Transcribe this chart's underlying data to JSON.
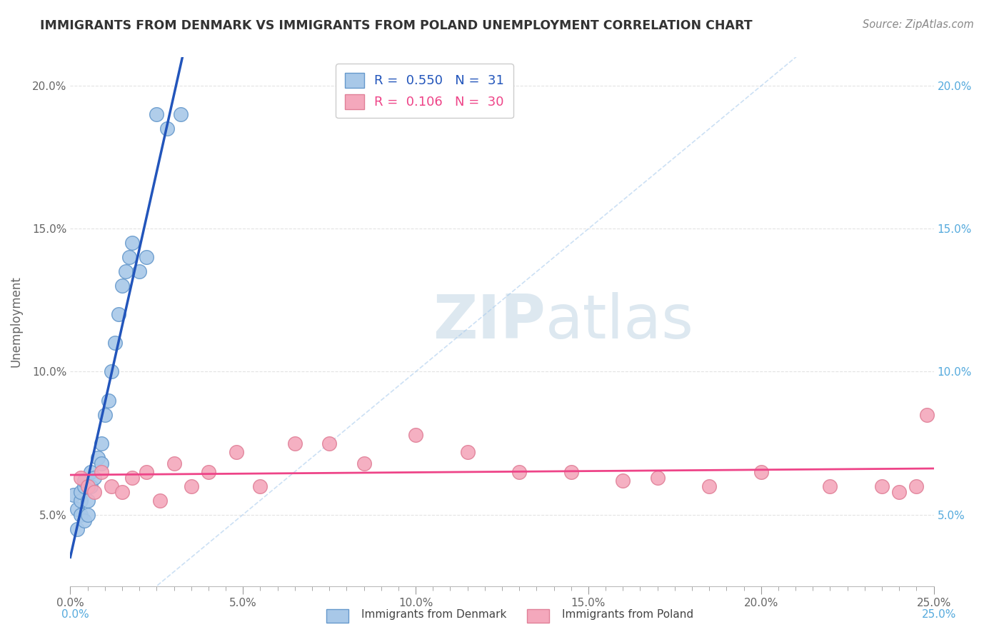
{
  "title": "IMMIGRANTS FROM DENMARK VS IMMIGRANTS FROM POLAND UNEMPLOYMENT CORRELATION CHART",
  "source": "Source: ZipAtlas.com",
  "ylabel": "Unemployment",
  "xlim": [
    0.0,
    0.25
  ],
  "ylim": [
    0.025,
    0.21
  ],
  "xtick_labels": [
    "0.0%",
    "",
    "",
    "",
    "",
    "",
    "",
    "",
    "",
    "",
    "5.0%",
    "",
    "",
    "",
    "",
    "",
    "",
    "",
    "",
    "",
    "10.0%",
    "",
    "",
    "",
    "",
    "",
    "",
    "",
    "",
    "",
    "15.0%",
    "",
    "",
    "",
    "",
    "",
    "",
    "",
    "",
    "",
    "20.0%",
    "",
    "",
    "",
    "",
    "",
    "",
    "",
    "",
    "",
    "25.0%"
  ],
  "xtick_vals": [
    0.0,
    0.005,
    0.01,
    0.015,
    0.02,
    0.025,
    0.03,
    0.035,
    0.04,
    0.045,
    0.05,
    0.055,
    0.06,
    0.065,
    0.07,
    0.075,
    0.08,
    0.085,
    0.09,
    0.095,
    0.1,
    0.105,
    0.11,
    0.115,
    0.12,
    0.125,
    0.13,
    0.135,
    0.14,
    0.145,
    0.15,
    0.155,
    0.16,
    0.165,
    0.17,
    0.175,
    0.18,
    0.185,
    0.19,
    0.195,
    0.2,
    0.205,
    0.21,
    0.215,
    0.22,
    0.225,
    0.23,
    0.235,
    0.24,
    0.245,
    0.25
  ],
  "xtick_major_labels": [
    "0.0%",
    "5.0%",
    "10.0%",
    "15.0%",
    "20.0%",
    "25.0%"
  ],
  "xtick_major_vals": [
    0.0,
    0.05,
    0.1,
    0.15,
    0.2,
    0.25
  ],
  "ytick_labels": [
    "5.0%",
    "10.0%",
    "15.0%",
    "20.0%"
  ],
  "ytick_vals": [
    0.05,
    0.1,
    0.15,
    0.2
  ],
  "denmark_color": "#A8C8E8",
  "poland_color": "#F4A8BC",
  "denmark_edge": "#6699CC",
  "poland_edge": "#E08098",
  "denmark_line_color": "#2255BB",
  "poland_line_color": "#EE4488",
  "r_denmark": 0.55,
  "n_denmark": 31,
  "r_poland": 0.106,
  "n_poland": 30,
  "denmark_x": [
    0.001,
    0.002,
    0.002,
    0.003,
    0.003,
    0.003,
    0.004,
    0.004,
    0.004,
    0.005,
    0.005,
    0.006,
    0.006,
    0.007,
    0.008,
    0.009,
    0.009,
    0.01,
    0.011,
    0.012,
    0.013,
    0.014,
    0.015,
    0.016,
    0.017,
    0.018,
    0.02,
    0.022,
    0.025,
    0.028,
    0.032
  ],
  "denmark_y": [
    0.057,
    0.045,
    0.052,
    0.05,
    0.055,
    0.058,
    0.048,
    0.06,
    0.062,
    0.055,
    0.05,
    0.06,
    0.065,
    0.063,
    0.07,
    0.075,
    0.068,
    0.085,
    0.09,
    0.1,
    0.11,
    0.12,
    0.13,
    0.135,
    0.14,
    0.145,
    0.135,
    0.14,
    0.19,
    0.185,
    0.19
  ],
  "poland_x": [
    0.003,
    0.005,
    0.007,
    0.009,
    0.012,
    0.015,
    0.018,
    0.022,
    0.026,
    0.03,
    0.035,
    0.04,
    0.048,
    0.055,
    0.065,
    0.075,
    0.085,
    0.1,
    0.115,
    0.13,
    0.145,
    0.16,
    0.17,
    0.185,
    0.2,
    0.22,
    0.235,
    0.24,
    0.245,
    0.248
  ],
  "poland_y": [
    0.063,
    0.06,
    0.058,
    0.065,
    0.06,
    0.058,
    0.063,
    0.065,
    0.055,
    0.068,
    0.06,
    0.065,
    0.072,
    0.06,
    0.075,
    0.075,
    0.068,
    0.078,
    0.072,
    0.065,
    0.065,
    0.062,
    0.063,
    0.06,
    0.065,
    0.06,
    0.06,
    0.058,
    0.06,
    0.085
  ],
  "bg_color": "#FFFFFF",
  "grid_color": "#DDDDDD",
  "title_color": "#333333",
  "right_tick_color": "#55AADD"
}
